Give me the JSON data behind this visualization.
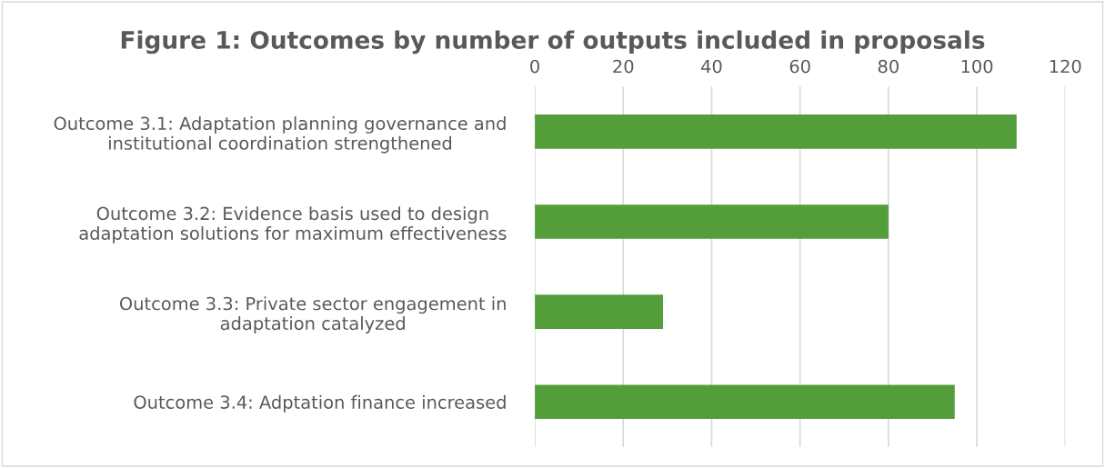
{
  "chart_data": {
    "type": "bar",
    "orientation": "horizontal",
    "title": "Figure 1: Outcomes by number of outputs included in proposals",
    "categories": [
      "Outcome 3.1: Adaptation planning governance and\ninstitutional coordination strengthened",
      "Outcome 3.2: Evidence basis used to design\nadaptation solutions for maximum effectiveness",
      "Outcome 3.3: Private sector engagement in\nadaptation catalyzed",
      "Outcome 3.4: Adptation finance increased"
    ],
    "values": [
      109,
      80,
      29,
      95
    ],
    "color": "#539e3a",
    "xlim": [
      0,
      120
    ],
    "xticks": [
      0,
      20,
      40,
      60,
      80,
      100,
      120
    ],
    "grid": "x",
    "legend": false
  }
}
